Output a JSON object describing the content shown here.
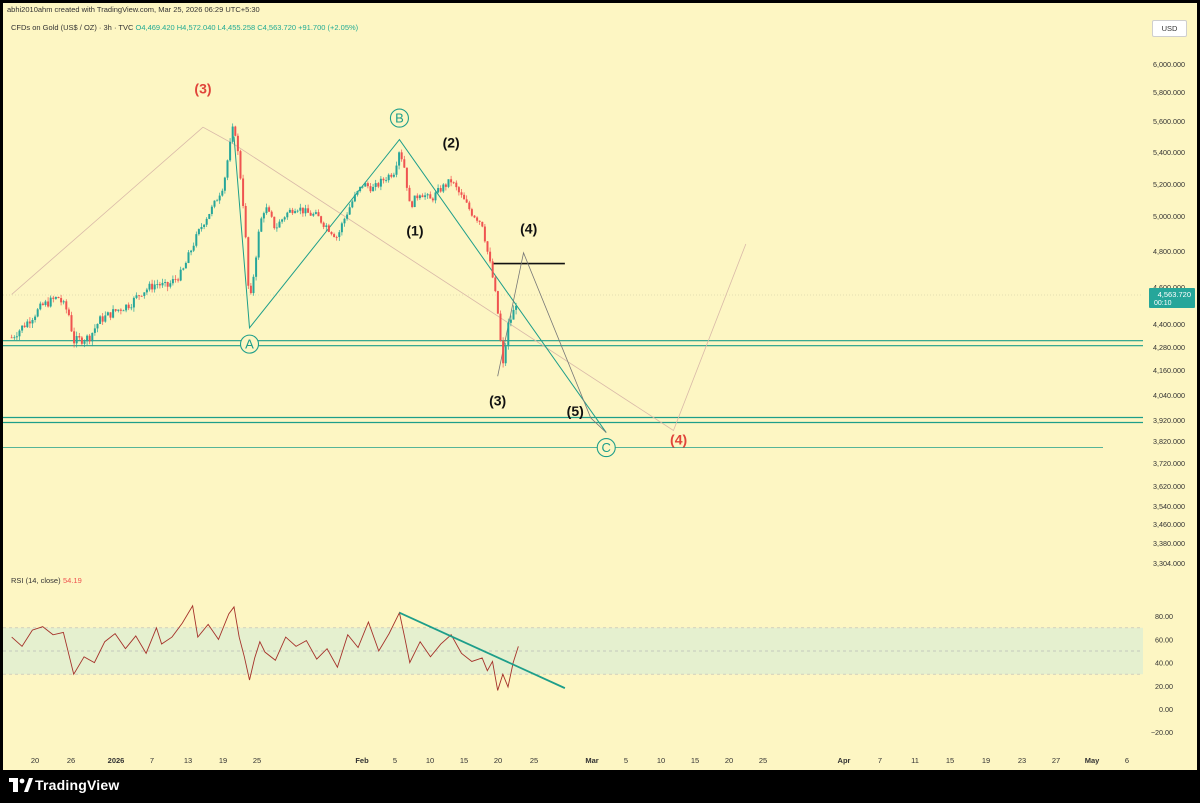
{
  "header": {
    "attribution": "abhi2010ahm created with TradingView.com, Mar 25, 2026 06:29 UTC+5:30",
    "symbol": "CFDs on Gold (US$ / OZ) · 3h · TVC",
    "ohlc": "O4,469.420 H4,572.040 L4,455.258 C4,563.720 +91.700 (+2.05%)",
    "currency": "USD"
  },
  "footer": {
    "brand": "TradingView"
  },
  "colors": {
    "background": "#fdf6c3",
    "up": "#26a69a",
    "down": "#ef5350",
    "teal_line": "#1e9e8a",
    "wave_red": "#e0443a",
    "rsi_line": "#a5322a",
    "rsi_band": "#e5f0cf"
  },
  "chart_data": [
    {
      "type": "candlestick",
      "title": "CFDs on Gold (US$ / OZ) · 3h · TVC",
      "x_tick_labels": [
        "20",
        "26",
        "2026",
        "7",
        "13",
        "19",
        "25",
        "Feb",
        "5",
        "10",
        "15",
        "20",
        "25",
        "Mar",
        "5",
        "10",
        "15",
        "20",
        "25",
        "Apr",
        "7",
        "11",
        "15",
        "19",
        "23",
        "27",
        "May",
        "6"
      ],
      "y_tick_labels": [
        "6,000.000",
        "5,800.000",
        "5,600.000",
        "5,400.000",
        "5,200.000",
        "5,000.000",
        "4,800.000",
        "4,600.000",
        "4,400.000",
        "4,280.000",
        "4,160.000",
        "4,040.000",
        "3,920.000",
        "3,820.000",
        "3,720.000",
        "3,620.000",
        "3,540.000",
        "3,460.000",
        "3,380.000",
        "3,304.000"
      ],
      "last_price": "4,563.720",
      "countdown": "00:10",
      "price_path": [
        {
          "date": "Dec 17",
          "price": 4330
        },
        {
          "date": "Dec 20",
          "price": 4410
        },
        {
          "date": "Dec 23",
          "price": 4500
        },
        {
          "date": "Dec 26",
          "price": 4545
        },
        {
          "date": "Dec 28",
          "price": 4460
        },
        {
          "date": "Dec 29",
          "price": 4310
        },
        {
          "date": "Jan 1",
          "price": 4330
        },
        {
          "date": "Jan 3",
          "price": 4420
        },
        {
          "date": "Jan 6",
          "price": 4470
        },
        {
          "date": "Jan 9",
          "price": 4510
        },
        {
          "date": "Jan 11",
          "price": 4570
        },
        {
          "date": "Jan 14",
          "price": 4620
        },
        {
          "date": "Jan 16",
          "price": 4600
        },
        {
          "date": "Jan 19",
          "price": 4680
        },
        {
          "date": "Jan 21",
          "price": 4830
        },
        {
          "date": "Jan 23",
          "price": 4960
        },
        {
          "date": "Jan 25",
          "price": 5060
        },
        {
          "date": "Jan 27",
          "price": 5200
        },
        {
          "date": "Jan 28",
          "price": 5400
        },
        {
          "date": "Jan 29",
          "price": 5590
        },
        {
          "date": "Jan 30",
          "price": 5330
        },
        {
          "date": "Jan 31",
          "price": 5000
        },
        {
          "date": "Feb 1",
          "price": 4480
        },
        {
          "date": "Feb 2",
          "price": 4720
        },
        {
          "date": "Feb 3",
          "price": 4950
        },
        {
          "date": "Feb 4",
          "price": 5060
        },
        {
          "date": "Feb 6",
          "price": 4930
        },
        {
          "date": "Feb 8",
          "price": 5010
        },
        {
          "date": "Feb 10",
          "price": 5060
        },
        {
          "date": "Feb 12",
          "price": 5020
        },
        {
          "date": "Feb 14",
          "price": 5000
        },
        {
          "date": "Feb 16",
          "price": 4940
        },
        {
          "date": "Feb 18",
          "price": 4880
        },
        {
          "date": "Feb 19",
          "price": 4960
        },
        {
          "date": "Feb 21",
          "price": 5100
        },
        {
          "date": "Feb 23",
          "price": 5200
        },
        {
          "date": "Feb 25",
          "price": 5170
        },
        {
          "date": "Feb 27",
          "price": 5230
        },
        {
          "date": "Mar 1",
          "price": 5280
        },
        {
          "date": "Mar 2",
          "price": 5420
        },
        {
          "date": "Mar 3",
          "price": 5300
        },
        {
          "date": "Mar 4",
          "price": 5060
        },
        {
          "date": "Mar 6",
          "price": 5150
        },
        {
          "date": "Mar 8",
          "price": 5100
        },
        {
          "date": "Mar 10",
          "price": 5170
        },
        {
          "date": "Mar 12",
          "price": 5220
        },
        {
          "date": "Mar 14",
          "price": 5120
        },
        {
          "date": "Mar 16",
          "price": 5020
        },
        {
          "date": "Mar 18",
          "price": 4960
        },
        {
          "date": "Mar 19",
          "price": 4800
        },
        {
          "date": "Mar 20",
          "price": 4660
        },
        {
          "date": "Mar 21",
          "price": 4470
        },
        {
          "date": "Mar 22",
          "price": 4170
        },
        {
          "date": "Mar 23",
          "price": 4390
        },
        {
          "date": "Mar 24",
          "price": 4460
        },
        {
          "date": "Mar 25",
          "price": 4564
        }
      ],
      "horizontal_levels": [
        4300,
        3920,
        3790
      ],
      "resistance_level": 4730,
      "projection_path": [
        {
          "date": "Mar 21",
          "price": 4130
        },
        {
          "date": "Mar 26",
          "price": 4790
        },
        {
          "date": "Apr 8",
          "price": 3930
        },
        {
          "date": "Apr 11",
          "price": 3860
        }
      ],
      "corrective_path": [
        {
          "date": "Jan 29",
          "price": 5500
        },
        {
          "date": "Feb 1",
          "price": 4380
        },
        {
          "date": "Mar 2",
          "price": 5480
        },
        {
          "date": "Apr 11",
          "price": 3860
        }
      ],
      "long_trend_path": [
        {
          "date": "Dec 17",
          "price": 4560
        },
        {
          "date": "Jan 23",
          "price": 5560
        },
        {
          "date": "Jan 29",
          "price": 5450
        },
        {
          "date": "Apr 24",
          "price": 3870
        },
        {
          "date": "May 8",
          "price": 4840
        }
      ],
      "wave_labels": [
        {
          "text": "(3)",
          "date": "Jan 23",
          "price": 5790,
          "style": "red"
        },
        {
          "text": "B",
          "date": "Mar 2",
          "price": 5620,
          "style": "circle"
        },
        {
          "text": "(2)",
          "date": "Mar 12",
          "price": 5430,
          "style": "black"
        },
        {
          "text": "(1)",
          "date": "Mar 5",
          "price": 4890,
          "style": "black"
        },
        {
          "text": "(4)",
          "date": "Mar 27",
          "price": 4900,
          "style": "black"
        },
        {
          "text": "A",
          "date": "Feb 1",
          "price": 4295,
          "style": "circle"
        },
        {
          "text": "(3)",
          "date": "Mar 21",
          "price": 3990,
          "style": "black"
        },
        {
          "text": "(5)",
          "date": "Apr 5",
          "price": 3940,
          "style": "black"
        },
        {
          "text": "C",
          "date": "Apr 11",
          "price": 3790,
          "style": "circle"
        },
        {
          "text": "(4)",
          "date": "Apr 25",
          "price": 3805,
          "style": "red"
        }
      ]
    },
    {
      "type": "line",
      "title": "RSI (14, close)",
      "last_value": "54.19",
      "ylim": [
        -20,
        80
      ],
      "y_tick_labels": [
        "80.00",
        "60.00",
        "40.00",
        "20.00",
        "0.00",
        "−20.00"
      ],
      "band": [
        30,
        70
      ],
      "midline": 50,
      "series": [
        {
          "date": "Dec 17",
          "value": 62
        },
        {
          "date": "Dec 19",
          "value": 54
        },
        {
          "date": "Dec 21",
          "value": 68
        },
        {
          "date": "Dec 23",
          "value": 71
        },
        {
          "date": "Dec 25",
          "value": 64
        },
        {
          "date": "Dec 27",
          "value": 66
        },
        {
          "date": "Dec 28",
          "value": 48
        },
        {
          "date": "Dec 29",
          "value": 30
        },
        {
          "date": "Dec 31",
          "value": 45
        },
        {
          "date": "Jan 2",
          "value": 40
        },
        {
          "date": "Jan 4",
          "value": 58
        },
        {
          "date": "Jan 6",
          "value": 65
        },
        {
          "date": "Jan 8",
          "value": 52
        },
        {
          "date": "Jan 10",
          "value": 63
        },
        {
          "date": "Jan 12",
          "value": 48
        },
        {
          "date": "Jan 14",
          "value": 70
        },
        {
          "date": "Jan 15",
          "value": 56
        },
        {
          "date": "Jan 17",
          "value": 62
        },
        {
          "date": "Jan 19",
          "value": 74
        },
        {
          "date": "Jan 21",
          "value": 89
        },
        {
          "date": "Jan 22",
          "value": 62
        },
        {
          "date": "Jan 24",
          "value": 73
        },
        {
          "date": "Jan 26",
          "value": 60
        },
        {
          "date": "Jan 28",
          "value": 82
        },
        {
          "date": "Jan 29",
          "value": 88
        },
        {
          "date": "Jan 30",
          "value": 62
        },
        {
          "date": "Jan 31",
          "value": 45
        },
        {
          "date": "Feb 1",
          "value": 25
        },
        {
          "date": "Feb 2",
          "value": 44
        },
        {
          "date": "Feb 3",
          "value": 58
        },
        {
          "date": "Feb 4",
          "value": 49
        },
        {
          "date": "Feb 6",
          "value": 42
        },
        {
          "date": "Feb 8",
          "value": 62
        },
        {
          "date": "Feb 10",
          "value": 54
        },
        {
          "date": "Feb 12",
          "value": 59
        },
        {
          "date": "Feb 14",
          "value": 43
        },
        {
          "date": "Feb 16",
          "value": 52
        },
        {
          "date": "Feb 18",
          "value": 36
        },
        {
          "date": "Feb 20",
          "value": 64
        },
        {
          "date": "Feb 22",
          "value": 53
        },
        {
          "date": "Feb 24",
          "value": 75
        },
        {
          "date": "Feb 26",
          "value": 50
        },
        {
          "date": "Feb 28",
          "value": 65
        },
        {
          "date": "Mar 2",
          "value": 83
        },
        {
          "date": "Mar 3",
          "value": 62
        },
        {
          "date": "Mar 4",
          "value": 40
        },
        {
          "date": "Mar 6",
          "value": 58
        },
        {
          "date": "Mar 8",
          "value": 45
        },
        {
          "date": "Mar 10",
          "value": 56
        },
        {
          "date": "Mar 12",
          "value": 64
        },
        {
          "date": "Mar 14",
          "value": 48
        },
        {
          "date": "Mar 16",
          "value": 41
        },
        {
          "date": "Mar 18",
          "value": 44
        },
        {
          "date": "Mar 19",
          "value": 33
        },
        {
          "date": "Mar 20",
          "value": 41
        },
        {
          "date": "Mar 21",
          "value": 16
        },
        {
          "date": "Mar 22",
          "value": 30
        },
        {
          "date": "Mar 23",
          "value": 19
        },
        {
          "date": "Mar 24",
          "value": 40
        },
        {
          "date": "Mar 25",
          "value": 54
        }
      ],
      "trendline": [
        {
          "date": "Mar 2",
          "value": 83
        },
        {
          "date": "Apr 3",
          "value": 18
        }
      ]
    }
  ]
}
